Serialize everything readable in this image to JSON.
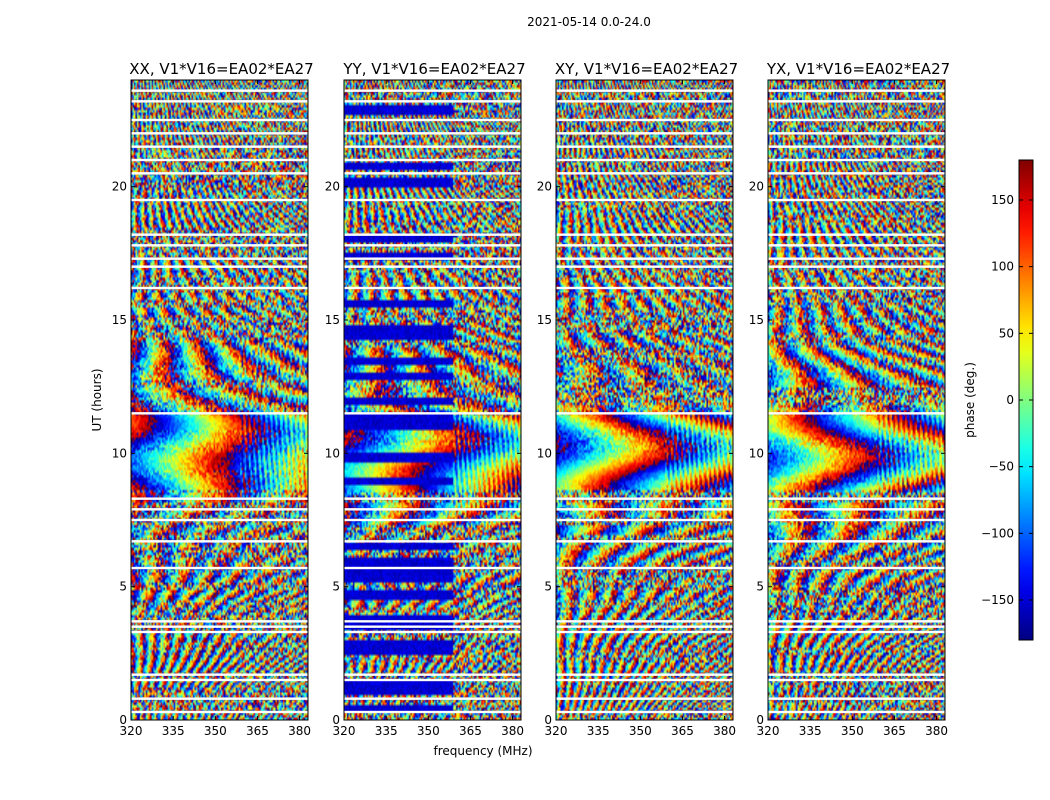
{
  "chart_data": {
    "type": "heatmap",
    "suptitle": "2021-05-14 0.0-24.0",
    "xlabel": "frequency (MHz)",
    "ylabel": "UT (hours)",
    "xlim": [
      320,
      383
    ],
    "ylim": [
      0,
      24
    ],
    "x_ticks": [
      320,
      335,
      350,
      365,
      380
    ],
    "y_ticks": [
      0,
      5,
      10,
      15,
      20
    ],
    "panels": [
      {
        "title": "XX, V1*V16=EA02*EA27",
        "pol": "XX"
      },
      {
        "title": "YY, V1*V16=EA02*EA27",
        "pol": "YY"
      },
      {
        "title": "XY, V1*V16=EA02*EA27",
        "pol": "XY"
      },
      {
        "title": "YX, V1*V16=EA02*EA27",
        "pol": "YX"
      }
    ],
    "colorbar": {
      "label": "phase (deg.)",
      "range": [
        -180,
        180
      ],
      "ticks": [
        150,
        100,
        50,
        0,
        -50,
        -100,
        -150
      ],
      "tick_labels": [
        "150",
        "100",
        "50",
        "0",
        "−50",
        "−100",
        "−150"
      ],
      "colormap": "jet"
    },
    "feature_notes": {
      "fringe_center_ut": 10,
      "gap_uts": [
        0.3,
        0.8,
        1.5,
        1.7,
        3.3,
        3.5,
        3.7,
        5.7,
        6.7,
        7.5,
        7.9,
        8.3,
        11.5,
        16.2,
        17.0,
        17.3,
        17.8,
        18.2,
        19.5,
        20.5,
        21.0,
        21.5,
        22.0,
        22.5,
        23.2,
        23.6
      ]
    }
  }
}
